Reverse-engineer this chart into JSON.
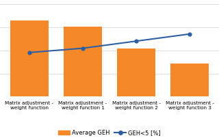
{
  "categories": [
    "Matrix adjustment -\nweight function",
    "Matrix adjustment -\nweight function 1",
    "Matrix adjustment -\nweight function 2",
    "Matrix adjustment -\nweight function 3"
  ],
  "bar_values": [
    0.82,
    0.76,
    0.52,
    0.36
  ],
  "line_values": [
    0.62,
    0.68,
    0.78,
    0.88
  ],
  "bar_color": "#f5892a",
  "line_color": "#2e5fa3",
  "legend_bar_label": "Average GEH",
  "legend_line_label": "GEH<5 [%]",
  "ylim_bar": [
    0,
    1.0
  ],
  "background_color": "#ffffff",
  "grid_color": "#d9d9d9",
  "label_fontsize": 5.2,
  "legend_fontsize": 6.0
}
